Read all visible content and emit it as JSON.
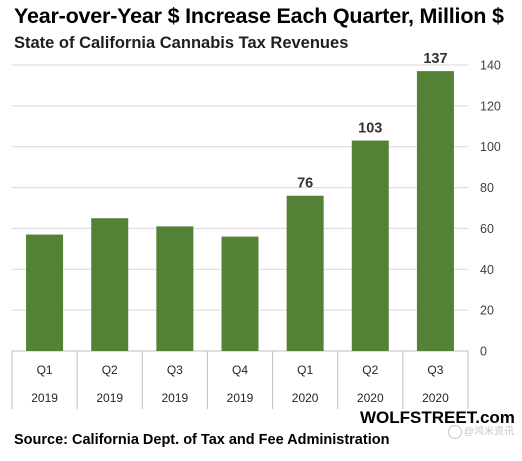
{
  "title": "Year-over-Year  $ Increase Each Quarter,  Million $",
  "subtitle": "State of California Cannabis Tax Revenues",
  "brand": "WOLFSTREET.com",
  "source": "Source: California Dept. of Tax and Fee Administration",
  "watermark": "@鸿米资讯",
  "colors": {
    "bar": "#538135",
    "grid": "#d9d9d9",
    "axis_text": "#404040"
  },
  "chart_data": {
    "type": "bar",
    "categories": [
      [
        "Q1",
        "2019"
      ],
      [
        "Q2",
        "2019"
      ],
      [
        "Q3",
        "2019"
      ],
      [
        "Q4",
        "2019"
      ],
      [
        "Q1",
        "2020"
      ],
      [
        "Q2",
        "2020"
      ],
      [
        "Q3",
        "2020"
      ]
    ],
    "values": [
      57,
      65,
      61,
      56,
      76,
      103,
      137
    ],
    "data_labels": [
      null,
      null,
      null,
      null,
      "76",
      "103",
      "137"
    ],
    "ylim": [
      0,
      140
    ],
    "yticks": [
      0,
      20,
      40,
      60,
      80,
      100,
      120,
      140
    ],
    "y_axis_side": "right",
    "grid": true,
    "legend": "none"
  }
}
